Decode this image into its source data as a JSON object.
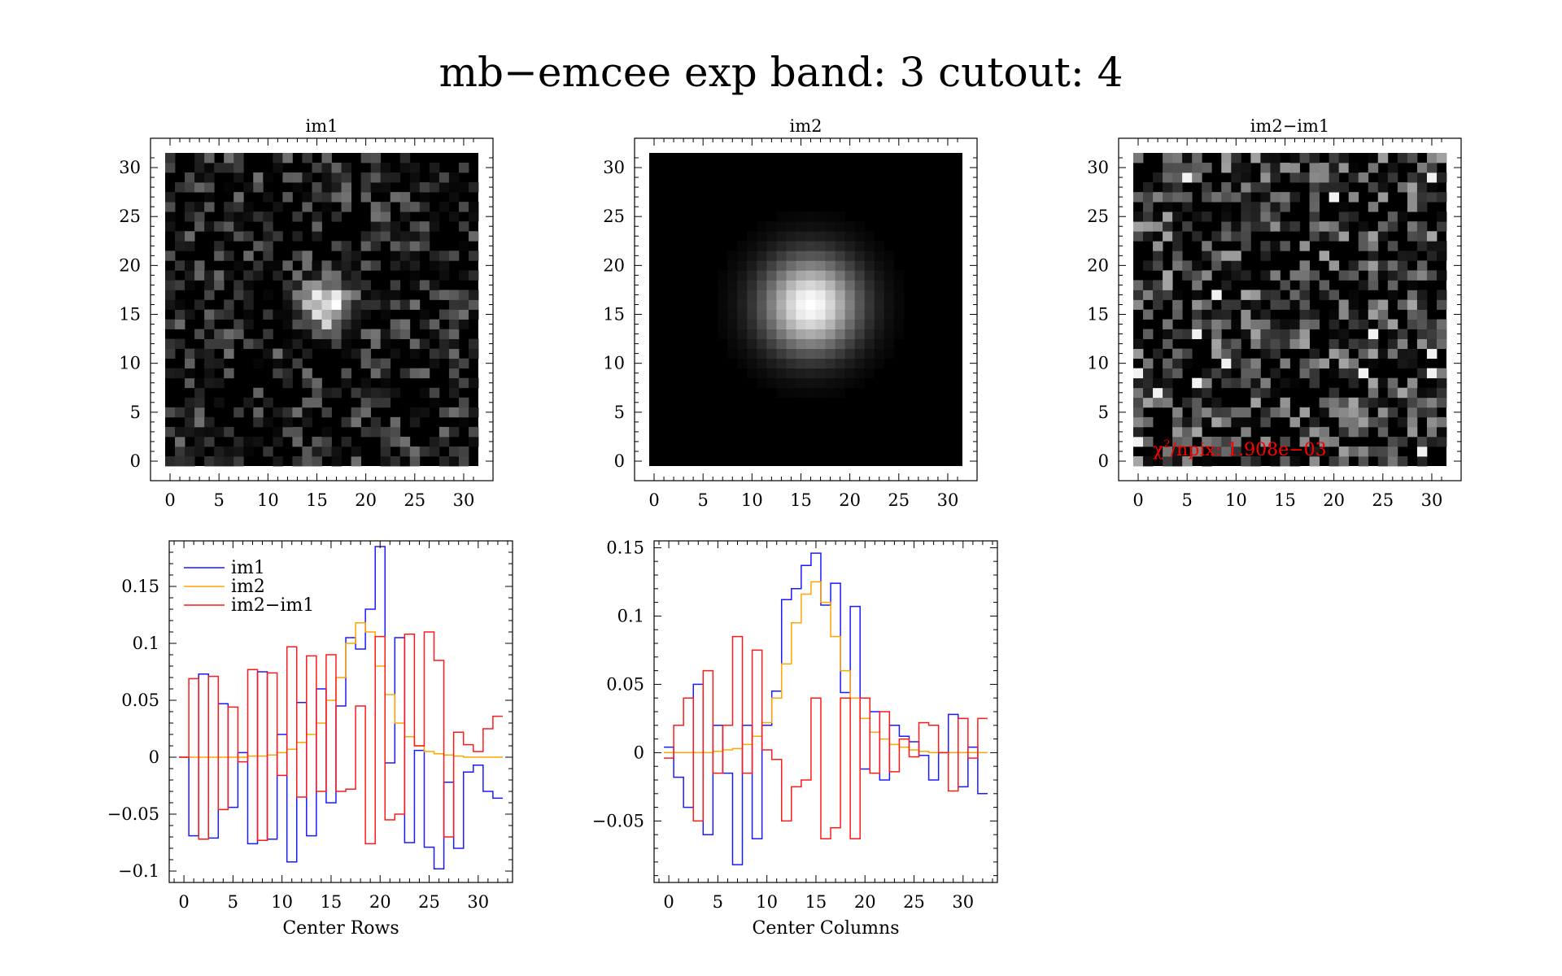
{
  "figure": {
    "title": "mb−emcee exp band: 3 cutout: 4"
  },
  "colors": {
    "im1": "#1a1aff",
    "im2": "#ffa500",
    "diff": "#ff1a1a",
    "chi_text": "#ff0000"
  },
  "chart_data": [
    {
      "type": "heatmap",
      "title": "im1",
      "colormap": "gray",
      "xlim": [
        -0.5,
        31.5
      ],
      "ylim": [
        -0.5,
        31.5
      ],
      "xticks": [
        "0",
        "5",
        "10",
        "15",
        "20",
        "25",
        "30"
      ],
      "yticks": [
        "0",
        "5",
        "10",
        "15",
        "20",
        "25",
        "30"
      ],
      "grid_size": 32,
      "peak": [
        16,
        16
      ],
      "features": "noisy image with a compact bright source near the centre (peak near x=16, y=16)"
    },
    {
      "type": "heatmap",
      "title": "im2",
      "colormap": "gray",
      "xlim": [
        -0.5,
        31.5
      ],
      "ylim": [
        -0.5,
        31.5
      ],
      "xticks": [
        "0",
        "5",
        "10",
        "15",
        "20",
        "25",
        "30"
      ],
      "yticks": [
        "0",
        "5",
        "10",
        "15",
        "20",
        "25",
        "30"
      ],
      "grid_size": 32,
      "peak": [
        16,
        16
      ],
      "features": "smooth round model source centred near x=16, y=16 on a black background"
    },
    {
      "type": "heatmap",
      "title": "im2−im1",
      "colormap": "gray",
      "xlim": [
        -0.5,
        31.5
      ],
      "ylim": [
        -0.5,
        31.5
      ],
      "xticks": [
        "0",
        "5",
        "10",
        "15",
        "20",
        "25",
        "30"
      ],
      "yticks": [
        "0",
        "5",
        "10",
        "15",
        "20",
        "25",
        "30"
      ],
      "grid_size": 32,
      "features": "residual noise with no visible structure",
      "annotation": {
        "text_pre": "χ",
        "text_sup": "2",
        "text_post": "/npix: 1.908e−03"
      }
    },
    {
      "type": "line",
      "step": true,
      "xlabel": "Center Rows",
      "xlim": [
        -1.5,
        33.5
      ],
      "ylim": [
        -0.11,
        0.19
      ],
      "xticks": [
        "0",
        "5",
        "10",
        "15",
        "20",
        "25",
        "30"
      ],
      "yticks": [
        {
          "v": -0.1,
          "label": "−0.1"
        },
        {
          "v": -0.05,
          "label": "−0.05"
        },
        {
          "v": 0,
          "label": "0"
        },
        {
          "v": 0.05,
          "label": "0.05"
        },
        {
          "v": 0.1,
          "label": "0.1"
        },
        {
          "v": 0.15,
          "label": "0.15"
        }
      ],
      "legend": {
        "position": "top-left",
        "entries": [
          "im1",
          "im2",
          "im2−im1"
        ]
      },
      "x": [
        0,
        1,
        2,
        3,
        4,
        5,
        6,
        7,
        8,
        9,
        10,
        11,
        12,
        13,
        14,
        15,
        16,
        17,
        18,
        19,
        20,
        21,
        22,
        23,
        24,
        25,
        26,
        27,
        28,
        29,
        30,
        31,
        32
      ],
      "series": [
        {
          "name": "im1",
          "color": "#1a1aff",
          "values": [
            0,
            -0.069,
            0.073,
            -0.071,
            0.047,
            -0.044,
            0.004,
            -0.076,
            0.075,
            -0.072,
            0.02,
            -0.092,
            0.048,
            -0.069,
            0.06,
            -0.04,
            0.045,
            0.105,
            0.095,
            0.13,
            0.185,
            -0.005,
            0.105,
            -0.075,
            0.006,
            -0.079,
            -0.098,
            -0.022,
            -0.08,
            -0.013,
            -0.007,
            -0.03,
            -0.036
          ]
        },
        {
          "name": "im2",
          "color": "#ffa500",
          "values": [
            0,
            0,
            0,
            0,
            0,
            0,
            0,
            0.001,
            0.001,
            0.002,
            0.004,
            0.007,
            0.013,
            0.02,
            0.03,
            0.05,
            0.07,
            0.1,
            0.118,
            0.11,
            0.08,
            0.055,
            0.03,
            0.018,
            0.01,
            0.005,
            0.003,
            0.002,
            0.001,
            0,
            0,
            0,
            0
          ]
        },
        {
          "name": "im2−im1",
          "color": "#ff1a1a",
          "values": [
            0,
            0.069,
            -0.072,
            0.071,
            -0.046,
            0.044,
            -0.004,
            0.077,
            -0.073,
            0.074,
            -0.016,
            0.097,
            -0.035,
            0.089,
            -0.03,
            0.09,
            -0.03,
            -0.028,
            0.045,
            -0.076,
            0.106,
            -0.055,
            -0.05,
            0.108,
            0.01,
            0.11,
            0.085,
            -0.07,
            0.022,
            0.011,
            0.005,
            0.025,
            0.036
          ]
        }
      ]
    },
    {
      "type": "line",
      "step": true,
      "xlabel": "Center Columns",
      "xlim": [
        -1.5,
        33.5
      ],
      "ylim": [
        -0.095,
        0.155
      ],
      "xticks": [
        "0",
        "5",
        "10",
        "15",
        "20",
        "25",
        "30"
      ],
      "yticks": [
        {
          "v": -0.05,
          "label": "−0.05"
        },
        {
          "v": 0,
          "label": "0"
        },
        {
          "v": 0.05,
          "label": "0.05"
        },
        {
          "v": 0.1,
          "label": "0.1"
        },
        {
          "v": 0.15,
          "label": "0.15"
        }
      ],
      "x": [
        0,
        1,
        2,
        3,
        4,
        5,
        6,
        7,
        8,
        9,
        10,
        11,
        12,
        13,
        14,
        15,
        16,
        17,
        18,
        19,
        20,
        21,
        22,
        23,
        24,
        25,
        26,
        27,
        28,
        29,
        30,
        31,
        32
      ],
      "series": [
        {
          "name": "im1",
          "color": "#1a1aff",
          "values": [
            0.004,
            -0.018,
            -0.04,
            0.05,
            -0.06,
            0.02,
            -0.015,
            -0.082,
            0.02,
            -0.063,
            0.02,
            0.045,
            0.112,
            0.12,
            0.137,
            0.146,
            0.108,
            0.124,
            0.044,
            0.107,
            -0.012,
            0.03,
            -0.02,
            0.02,
            0.012,
            0.008,
            -0.002,
            -0.02,
            0.0,
            0.028,
            -0.025,
            0.004,
            -0.03
          ]
        },
        {
          "name": "im2",
          "color": "#ffa500",
          "values": [
            0,
            0,
            0,
            0,
            0,
            0.001,
            0.002,
            0.003,
            0.006,
            0.012,
            0.022,
            0.04,
            0.065,
            0.095,
            0.116,
            0.125,
            0.11,
            0.085,
            0.06,
            0.04,
            0.025,
            0.015,
            0.01,
            0.006,
            0.004,
            0.002,
            0.001,
            0,
            0,
            0,
            0,
            0,
            0
          ]
        },
        {
          "name": "im2−im1",
          "color": "#ff1a1a",
          "values": [
            -0.004,
            0.02,
            0.04,
            -0.05,
            0.06,
            -0.015,
            0.02,
            0.085,
            -0.015,
            0.075,
            0.002,
            -0.005,
            -0.05,
            -0.025,
            -0.02,
            0.04,
            -0.063,
            -0.055,
            0.04,
            -0.063,
            0.04,
            -0.015,
            0.03,
            -0.014,
            0.01,
            -0.003,
            0.022,
            0.02,
            0.0,
            -0.028,
            0.025,
            -0.004,
            0.025
          ]
        }
      ]
    }
  ]
}
